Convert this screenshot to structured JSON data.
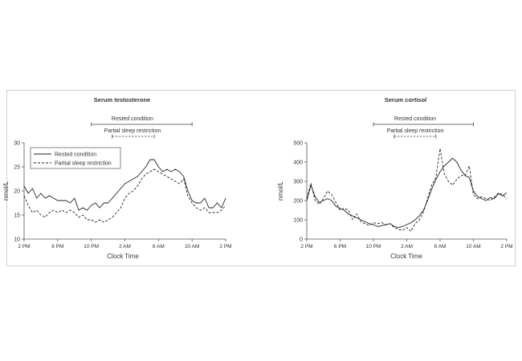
{
  "figure": {
    "shared_xlabel": "Clock Time",
    "shared_ylabel": "nmol/L",
    "bracket_labels": {
      "rested": "Rested condition",
      "partial": "Partial sleep restriction"
    },
    "legend_labels": [
      "Rested condition",
      "Partial sleep restriction"
    ]
  },
  "chart_data": [
    {
      "type": "line",
      "title": "Serum testosterone",
      "xlabel": "Clock Time",
      "ylabel": "nmol/L",
      "x_tick_labels": [
        "2 PM",
        "6 PM",
        "10 PM",
        "2 AM",
        "6 AM",
        "10 AM",
        "2 PM"
      ],
      "x_tick_hours": [
        0,
        4,
        8,
        12,
        16,
        20,
        24
      ],
      "y_ticks": [
        10,
        15,
        20,
        25,
        30
      ],
      "xlim": [
        0,
        24
      ],
      "ylim": [
        10,
        30
      ],
      "legend": "top-left",
      "grid": false,
      "brackets": {
        "rested": [
          8,
          20
        ],
        "partial": [
          10.5,
          15.5
        ]
      },
      "series": [
        {
          "name": "Rested condition",
          "style": "solid",
          "x": [
            0,
            0.5,
            1,
            1.5,
            2,
            2.5,
            3,
            3.5,
            4,
            4.5,
            5,
            5.5,
            6,
            6.5,
            7,
            7.5,
            8,
            8.5,
            9,
            9.5,
            10,
            10.5,
            11,
            11.5,
            12,
            12.5,
            13,
            13.5,
            14,
            14.5,
            15,
            15.5,
            16,
            16.5,
            17,
            17.5,
            18,
            18.5,
            19,
            19.5,
            20,
            20.5,
            21,
            21.5,
            22,
            22.5,
            23,
            23.5,
            24
          ],
          "values": [
            21,
            19.5,
            20.5,
            18.5,
            19.5,
            18.5,
            19,
            18.5,
            18,
            18,
            18,
            17.5,
            18.5,
            16,
            16.5,
            16,
            17,
            17.5,
            16.5,
            17.5,
            17.5,
            18.5,
            19.5,
            20.5,
            21.5,
            22,
            22.5,
            23,
            24,
            25,
            26.5,
            26.5,
            25,
            24,
            24.5,
            24,
            24.5,
            24,
            23,
            20,
            18,
            17.5,
            17.5,
            18.5,
            16.5,
            16.5,
            17.5,
            16.5,
            18.5
          ]
        },
        {
          "name": "Partial sleep restriction",
          "style": "dashed",
          "x": [
            0,
            0.5,
            1,
            1.5,
            2,
            2.5,
            3,
            3.5,
            4,
            4.5,
            5,
            5.5,
            6,
            6.5,
            7,
            7.5,
            8,
            8.5,
            9,
            9.5,
            10,
            10.5,
            11,
            11.5,
            12,
            12.5,
            13,
            13.5,
            14,
            14.5,
            15,
            15.5,
            16,
            16.5,
            17,
            17.5,
            18,
            18.5,
            19,
            19.5,
            20,
            20.5,
            21,
            21.5,
            22,
            22.5,
            23,
            23.5,
            24
          ],
          "values": [
            19,
            17,
            15.5,
            16,
            15,
            14.5,
            15.5,
            16,
            15.5,
            16,
            15.5,
            16,
            15.5,
            14.5,
            15,
            14,
            14,
            13.5,
            14,
            13.5,
            14,
            14.5,
            15.5,
            16.5,
            18.5,
            19.5,
            20,
            21,
            22.5,
            23.5,
            24,
            24.5,
            24,
            23.5,
            23,
            22.5,
            22,
            21.5,
            22.5,
            19,
            17.5,
            16.5,
            16,
            16.5,
            15.5,
            15.5,
            15.5,
            16,
            17
          ]
        }
      ]
    },
    {
      "type": "line",
      "title": "Serum cortisol",
      "xlabel": "Clock Time",
      "ylabel": "nmol/L",
      "x_tick_labels": [
        "2 PM",
        "6 PM",
        "10 PM",
        "2 AM",
        "6 AM",
        "10 AM",
        "2 PM"
      ],
      "x_tick_hours": [
        0,
        4,
        8,
        12,
        16,
        20,
        24
      ],
      "y_ticks": [
        0,
        100,
        200,
        300,
        400,
        500
      ],
      "xlim": [
        0,
        24
      ],
      "ylim": [
        0,
        500
      ],
      "legend": "none",
      "grid": false,
      "brackets": {
        "rested": [
          8,
          20
        ],
        "partial": [
          10.5,
          15.5
        ]
      },
      "series": [
        {
          "name": "Rested condition",
          "style": "solid",
          "x": [
            0,
            0.5,
            1,
            1.5,
            2,
            2.5,
            3,
            3.5,
            4,
            4.5,
            5,
            5.5,
            6,
            6.5,
            7,
            7.5,
            8,
            8.5,
            9,
            9.5,
            10,
            10.5,
            11,
            11.5,
            12,
            12.5,
            13,
            13.5,
            14,
            14.5,
            15,
            15.5,
            16,
            16.5,
            17,
            17.5,
            18,
            18.5,
            19,
            19.5,
            20,
            20.5,
            21,
            21.5,
            22,
            22.5,
            23,
            23.5,
            24
          ],
          "values": [
            200,
            280,
            220,
            190,
            200,
            210,
            200,
            170,
            160,
            150,
            130,
            120,
            110,
            100,
            90,
            80,
            75,
            65,
            70,
            75,
            80,
            65,
            60,
            65,
            75,
            85,
            100,
            120,
            150,
            200,
            260,
            310,
            350,
            380,
            400,
            420,
            400,
            360,
            330,
            320,
            250,
            220,
            210,
            200,
            215,
            210,
            235,
            225,
            240
          ]
        },
        {
          "name": "Partial sleep restriction",
          "style": "dashed",
          "x": [
            0,
            0.5,
            1,
            1.5,
            2,
            2.5,
            3,
            3.5,
            4,
            4.5,
            5,
            5.5,
            6,
            6.5,
            7,
            7.5,
            8,
            8.5,
            9,
            9.5,
            10,
            10.5,
            11,
            11.5,
            12,
            12.5,
            13,
            13.5,
            14,
            14.5,
            15,
            15.5,
            16,
            16.5,
            17,
            17.5,
            18,
            18.5,
            19,
            19.5,
            20,
            20.5,
            21,
            21.5,
            22,
            22.5,
            23,
            23.5,
            24
          ],
          "values": [
            210,
            290,
            200,
            180,
            210,
            250,
            230,
            190,
            150,
            160,
            150,
            100,
            130,
            90,
            80,
            70,
            85,
            80,
            85,
            75,
            80,
            60,
            50,
            45,
            60,
            40,
            80,
            100,
            140,
            210,
            280,
            320,
            470,
            340,
            300,
            280,
            310,
            330,
            330,
            380,
            230,
            210,
            220,
            210,
            200,
            215,
            240,
            230,
            210
          ]
        }
      ]
    }
  ]
}
